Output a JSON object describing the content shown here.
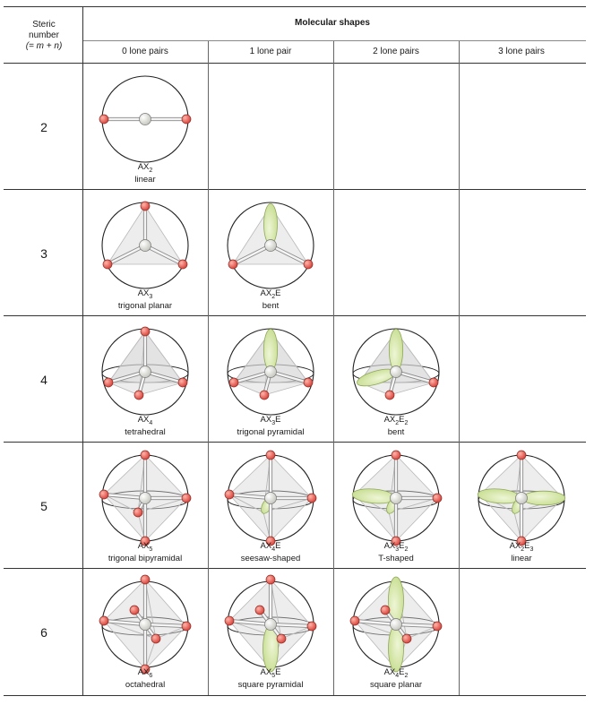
{
  "header": {
    "steric_line1": "Steric",
    "steric_line2": "number",
    "steric_line3": "(= m + n)",
    "group_title": "Molecular shapes",
    "columns": [
      "0 lone pairs",
      "1 lone pair",
      "2 lone pairs",
      "3 lone pairs"
    ]
  },
  "rows": [
    {
      "steric": "2",
      "cells": [
        {
          "present": true,
          "formula": "AX",
          "sub1": "2",
          "e": "",
          "sub2": "",
          "name": "linear",
          "geom": "linear2",
          "lone": 0
        }
      ]
    },
    {
      "steric": "3",
      "cells": [
        {
          "present": true,
          "formula": "AX",
          "sub1": "3",
          "e": "",
          "sub2": "",
          "name": "trigonal planar",
          "geom": "trig",
          "lone": 0
        },
        {
          "present": true,
          "formula": "AX",
          "sub1": "2",
          "e": "E",
          "sub2": "",
          "name": "bent",
          "geom": "trig",
          "lone": 1
        }
      ]
    },
    {
      "steric": "4",
      "cells": [
        {
          "present": true,
          "formula": "AX",
          "sub1": "4",
          "e": "",
          "sub2": "",
          "name": "tetrahedral",
          "geom": "tet",
          "lone": 0
        },
        {
          "present": true,
          "formula": "AX",
          "sub1": "3",
          "e": "E",
          "sub2": "",
          "name": "trigonal pyramidal",
          "geom": "tet",
          "lone": 1
        },
        {
          "present": true,
          "formula": "AX",
          "sub1": "2",
          "e": "E",
          "sub2": "2",
          "name": "bent",
          "geom": "tet",
          "lone": 2
        }
      ]
    },
    {
      "steric": "5",
      "cells": [
        {
          "present": true,
          "formula": "AX",
          "sub1": "5",
          "e": "",
          "sub2": "",
          "name": "trigonal bipyramidal",
          "geom": "tbp",
          "lone": 0
        },
        {
          "present": true,
          "formula": "AX",
          "sub1": "4",
          "e": "E",
          "sub2": "",
          "name": "seesaw-shaped",
          "geom": "tbp",
          "lone": 1
        },
        {
          "present": true,
          "formula": "AX",
          "sub1": "3",
          "e": "E",
          "sub2": "2",
          "name": "T-shaped",
          "geom": "tbp",
          "lone": 2
        },
        {
          "present": true,
          "formula": "AX",
          "sub1": "2",
          "e": "E",
          "sub2": "3",
          "name": "linear",
          "geom": "tbp",
          "lone": 3
        }
      ]
    },
    {
      "steric": "6",
      "cells": [
        {
          "present": true,
          "formula": "AX",
          "sub1": "6",
          "e": "",
          "sub2": "",
          "name": "octahedral",
          "geom": "oct",
          "lone": 0
        },
        {
          "present": true,
          "formula": "AX",
          "sub1": "5",
          "e": "E",
          "sub2": "",
          "name": "square pyramidal",
          "geom": "oct",
          "lone": 1
        },
        {
          "present": true,
          "formula": "AX",
          "sub1": "4",
          "e": "E",
          "sub2": "2",
          "name": "square planar",
          "geom": "oct",
          "lone": 2
        }
      ]
    }
  ],
  "colors": {
    "atom": "#d9473f",
    "lone_pair": "#c6dc8e",
    "center": "#f2f2ee",
    "face": "#d8d8d8",
    "rule": "#333333"
  }
}
